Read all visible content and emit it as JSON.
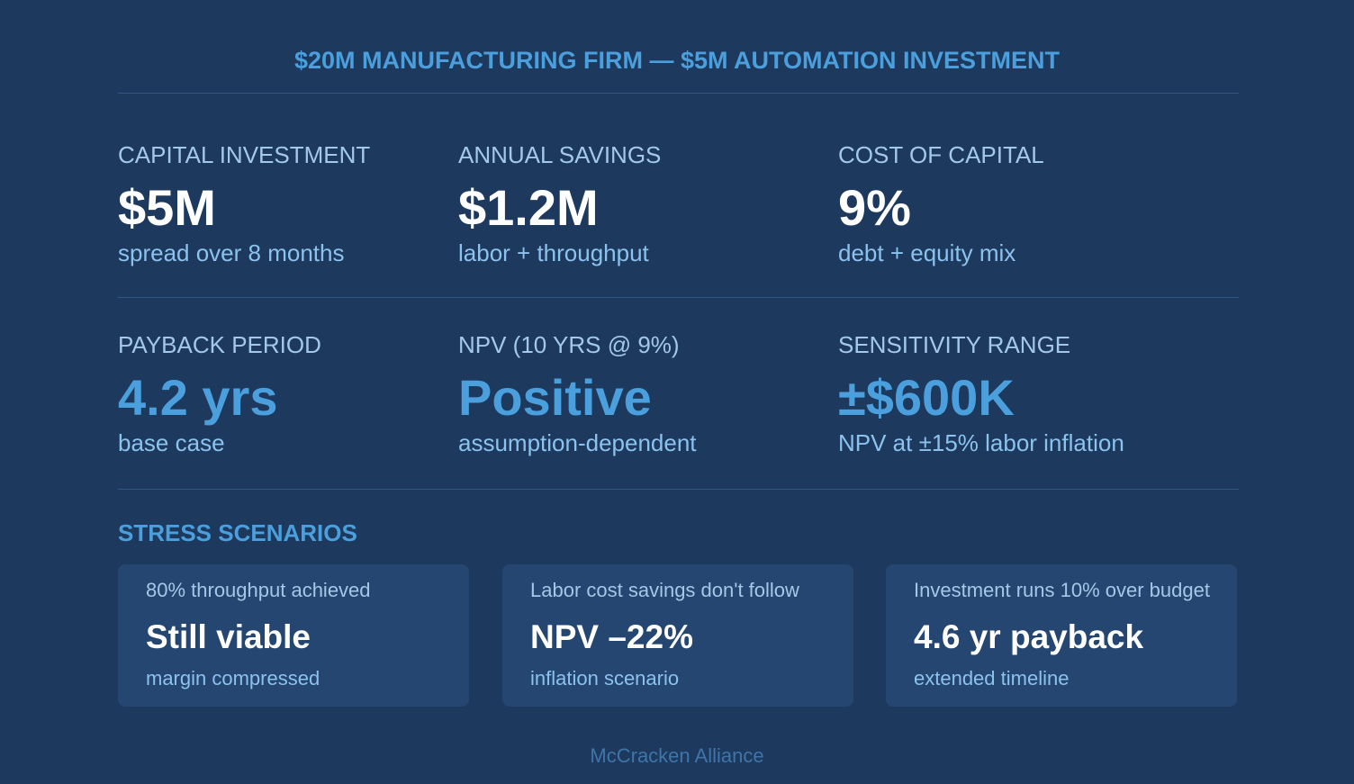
{
  "header": {
    "title": "$20M MANUFACTURING FIRM — $5M AUTOMATION INVESTMENT"
  },
  "metrics": [
    {
      "label": "CAPITAL INVESTMENT",
      "value": "$5M",
      "note": "spread over 8 months"
    },
    {
      "label": "ANNUAL SAVINGS",
      "value": "$1.2M",
      "note": "labor + throughput"
    },
    {
      "label": "COST OF CAPITAL",
      "value": "9%",
      "note": "debt + equity mix"
    },
    {
      "label": "PAYBACK PERIOD",
      "value": "4.2 yrs",
      "note": "base case"
    },
    {
      "label": "NPV (10 YRS @ 9%)",
      "value": "Positive",
      "note": "assumption-dependent"
    },
    {
      "label": "SENSITIVITY RANGE",
      "value": "±$600K",
      "note": "NPV at ±15% labor inflation"
    }
  ],
  "section": {
    "title": "STRESS SCENARIOS"
  },
  "scenarios": [
    {
      "label": "80% throughput achieved",
      "value": "Still viable",
      "note": "margin compressed"
    },
    {
      "label": "Labor cost savings don't follow",
      "value": "NPV –22%",
      "note": "inflation scenario"
    },
    {
      "label": "Investment runs 10% over budget",
      "value": "4.6 yr payback",
      "note": "extended timeline"
    }
  ],
  "footer": {
    "text": "McCracken Alliance"
  }
}
